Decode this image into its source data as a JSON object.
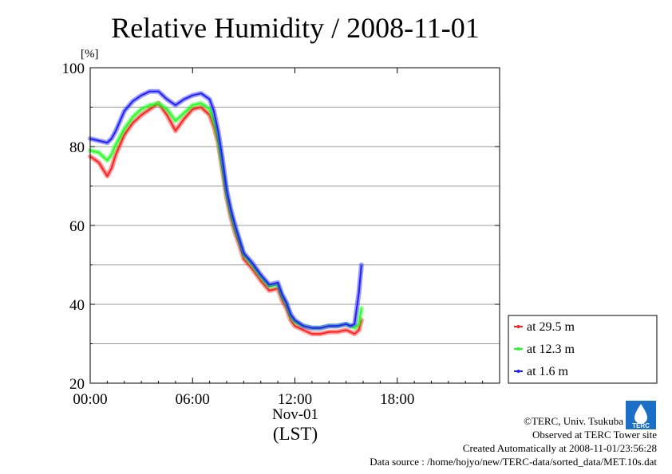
{
  "chart_data": {
    "type": "line",
    "title": "Relative Humidity / 2008-11-01",
    "ylabel": "[%]",
    "xlabel_date": "Nov-01",
    "xlabel_zone": "(LST)",
    "xlim_hours": [
      0,
      24
    ],
    "ylim": [
      20,
      100
    ],
    "yticks": [
      20,
      40,
      60,
      80,
      100
    ],
    "xtick_hours": [
      0,
      6,
      12,
      18
    ],
    "xtick_labels": [
      "00:00",
      "06:00",
      "12:00",
      "18:00"
    ],
    "grid": true,
    "legend_position": "outside-right",
    "x_hours": [
      0,
      0.5,
      1,
      1.25,
      1.5,
      2,
      2.5,
      3,
      3.5,
      4,
      4.5,
      5,
      5.5,
      6,
      6.5,
      7,
      7.25,
      7.5,
      7.75,
      8,
      8.25,
      8.5,
      8.75,
      9,
      9.5,
      10,
      10.5,
      11,
      11.25,
      11.5,
      11.75,
      12,
      12.5,
      13,
      13.5,
      14,
      14.5,
      15,
      15.25,
      15.5,
      15.75,
      15.9
    ],
    "series": [
      {
        "name": "at 29.5 m",
        "color": "#ff2020",
        "values": [
          77.5,
          76,
          72.5,
          74.5,
          78,
          83,
          86,
          88,
          89.5,
          91,
          88,
          84,
          87,
          89.5,
          90,
          88,
          85,
          81,
          74,
          67,
          62,
          58,
          55,
          51.5,
          49,
          46,
          43.5,
          44,
          41,
          39,
          36,
          34.5,
          33.5,
          32.5,
          32.5,
          33,
          33,
          33.5,
          33,
          32.5,
          33.5,
          36
        ]
      },
      {
        "name": "at 12.3 m",
        "color": "#20ff20",
        "values": [
          79,
          78.5,
          76.5,
          78,
          80.5,
          84.5,
          87.5,
          89.5,
          90.5,
          91,
          89.5,
          86.5,
          88.5,
          90.5,
          91,
          89.5,
          86.5,
          82,
          75,
          68,
          63,
          59,
          56,
          52.5,
          50,
          47,
          44.5,
          45,
          42,
          40,
          37,
          35.5,
          34.5,
          34,
          34,
          34.5,
          34.5,
          35,
          34.5,
          34,
          35,
          39
        ]
      },
      {
        "name": "at 1.6 m",
        "color": "#2020ff",
        "values": [
          82,
          81.5,
          81,
          82,
          84,
          89,
          91.5,
          93,
          94,
          94,
          92,
          90.5,
          92,
          93,
          93.5,
          92,
          89,
          84,
          77,
          69,
          64,
          60,
          56.5,
          53,
          50.5,
          47.5,
          45,
          45.5,
          42.5,
          40.5,
          37.5,
          36,
          34.5,
          34,
          34,
          34.5,
          34.5,
          35,
          34.5,
          35,
          43,
          50
        ]
      }
    ]
  },
  "footer": {
    "copyright": "©TERC, Univ. Tsukuba",
    "observed": "Observed at TERC Tower site",
    "created": "Created Automatically at 2008-11-01/23:56:28",
    "source": "Data source : /home/hojyo/new/TERC-data/sorted_data/MET.10s.dat"
  },
  "logo_text": "TERC",
  "logo_color": "#1a6fc9"
}
